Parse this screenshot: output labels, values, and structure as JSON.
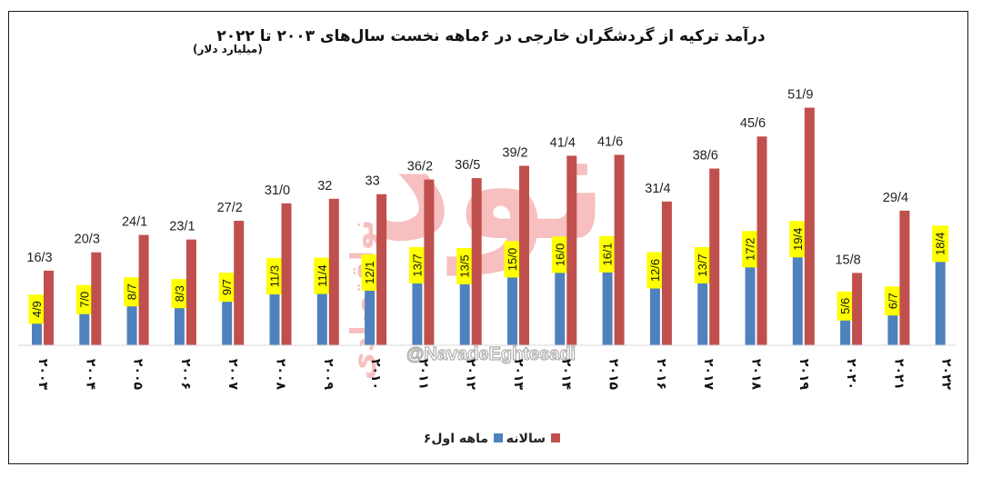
{
  "chart_data": {
    "type": "bar",
    "title": "درآمد ترکیه از گردشگران خارجی در ۶ماهه نخست سال‌های ۲۰۰۳ تا ۲۰۲۲",
    "subtitle": "(میلیارد دلار)",
    "categories": [
      "۲۰۰۳",
      "۲۰۰۴",
      "۲۰۰۵",
      "۲۰۰۶",
      "۲۰۰۷",
      "۲۰۰۸",
      "۲۰۰۹",
      "۲۰۱۰",
      "۲۰۱۱",
      "۲۰۱۲",
      "۲۰۱۳",
      "۲۰۱۴",
      "۲۰۱۵",
      "۲۰۱۶",
      "۲۰۱۷",
      "۲۰۱۸",
      "۲۰۱۹",
      "۲۰۲۰",
      "۲۰۲۱",
      "۲۰۲۲"
    ],
    "series": [
      {
        "name": "۶ماهه اول",
        "color": "#4f81bd",
        "values": [
          4.9,
          7.0,
          8.7,
          8.3,
          9.7,
          11.3,
          11.4,
          12.1,
          13.7,
          13.5,
          15.0,
          16.0,
          16.1,
          12.6,
          13.7,
          17.2,
          19.4,
          5.6,
          6.7,
          18.4
        ],
        "labels": [
          "4/9",
          "7/0",
          "8/7",
          "8/3",
          "9/7",
          "11/3",
          "11/4",
          "12/1",
          "13/7",
          "13/5",
          "15/0",
          "16/0",
          "16/1",
          "12/6",
          "13/7",
          "17/2",
          "19/4",
          "5/6",
          "6/7",
          "18/4"
        ]
      },
      {
        "name": "سالانه",
        "color": "#c0504d",
        "values": [
          16.3,
          20.3,
          24.1,
          23.1,
          27.2,
          31.0,
          32,
          33,
          36.2,
          36.5,
          39.2,
          41.4,
          41.6,
          31.4,
          38.6,
          45.6,
          51.9,
          15.8,
          29.4,
          null
        ],
        "labels": [
          "16/3",
          "20/3",
          "24/1",
          "23/1",
          "27/2",
          "31/0",
          "32",
          "33",
          "36/2",
          "36/5",
          "39/2",
          "41/4",
          "41/6",
          "31/4",
          "38/6",
          "45/6",
          "51/9",
          "15/8",
          "29/4",
          ""
        ]
      }
    ],
    "ylim": [
      0,
      52
    ],
    "grid": false,
    "legend_position": "bottom"
  },
  "watermark": {
    "logo_text": "نود",
    "side_text": "نواقتصادی",
    "handle": "@NavadeEghtesadi"
  },
  "colors": {
    "half_bar": "#4f81bd",
    "annual_bar": "#c0504d",
    "label_highlight": "#ffff00",
    "watermark": "#f28b8b"
  }
}
